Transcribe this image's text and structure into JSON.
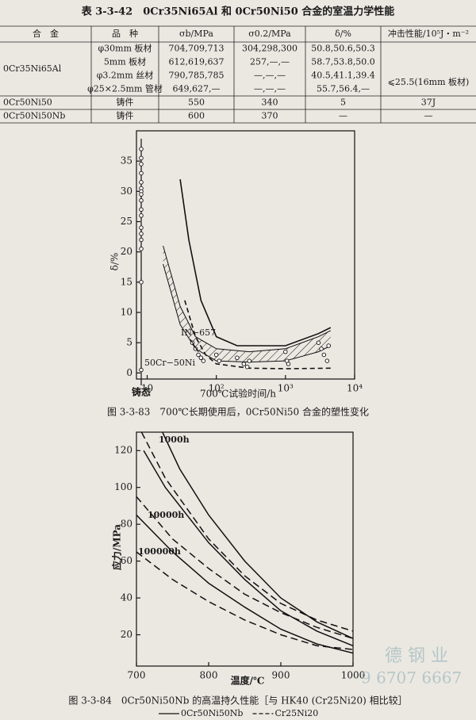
{
  "table": {
    "title": "表 3-3-42　0Cr35Ni65Al 和 0Cr50Ni50 合金的室温力学性能",
    "header": [
      "合　金",
      "品　种",
      "σb/MPa",
      "σ0.2/MPa",
      "δ/%",
      "冲击性能/10⁵J・m⁻²"
    ],
    "groups": [
      {
        "alloy": "0Cr35Ni65Al",
        "impact": "⩽25.5(16mm 板材)",
        "rows": [
          [
            "φ30mm 板材",
            "704,709,713",
            "304,298,300",
            "50.8,50.6,50.3"
          ],
          [
            "5mm 板材",
            "612,619,637",
            "257,—,—",
            "58.7,53.8,50.0"
          ],
          [
            "φ3.2mm 丝材",
            "790,785,785",
            "—,—,—",
            "40.5,41.1,39.4"
          ],
          [
            "φ25×2.5mm 管材",
            "649,627,—",
            "—,—,—",
            "55.7,56.4,—"
          ]
        ]
      },
      {
        "alloy": "0Cr50Ni50",
        "impact": "37J",
        "rows": [
          [
            "铸件",
            "550",
            "340",
            "5"
          ]
        ]
      },
      {
        "alloy": "0Cr50Ni50Nb",
        "impact": "—",
        "rows": [
          [
            "铸件",
            "600",
            "370",
            "—"
          ]
        ]
      }
    ]
  },
  "chart_data": [
    {
      "type": "scatter",
      "caption": "图 3-3-83　700℃长期使用后，0Cr50Ni50 合金的塑性变化",
      "xlabel": "700℃试验时间/h",
      "ylabel": "δ/%",
      "log_x": true,
      "xlim": [
        7,
        10000
      ],
      "ylim": [
        -1,
        40
      ],
      "xticks": [
        10,
        {
          "value": 100,
          "label": "10²"
        },
        {
          "value": 1000,
          "label": "10³"
        },
        {
          "value": 10000,
          "label": "10⁴"
        }
      ],
      "yticks": [
        0,
        5,
        10,
        15,
        20,
        25,
        30,
        35
      ],
      "cast": {
        "label": "铸态",
        "values": [
          37,
          35.5,
          34.5,
          33,
          31.5,
          30.5,
          30,
          29.5,
          28.5,
          27,
          26,
          24,
          23,
          22,
          20.5,
          15,
          0.5
        ]
      },
      "series": [
        {
          "x": [
            45,
            50,
            55,
            60,
            65,
            100,
            110,
            200,
            250,
            280,
            300,
            1000,
            1050,
            1100,
            3000,
            3300,
            3600,
            4000,
            4200
          ],
          "values": [
            5,
            4,
            3,
            2.5,
            2,
            3,
            2,
            2.5,
            1.5,
            1,
            2,
            3.5,
            2,
            1.5,
            5,
            4,
            3,
            2,
            4.5
          ]
        }
      ],
      "band": {
        "label": "IN−657",
        "x": [
          17,
          30,
          50,
          100,
          300,
          1000,
          3000,
          4500
        ],
        "upper": [
          21,
          11,
          6,
          4,
          3.5,
          4,
          6,
          7
        ],
        "lower": [
          18,
          8,
          4,
          2,
          1.8,
          2,
          3.5,
          4.5
        ]
      },
      "curves": [
        {
          "dash": false,
          "x": [
            30,
            40,
            60,
            100,
            200,
            1000,
            3000,
            4500
          ],
          "values": [
            32,
            22,
            12,
            6,
            4.5,
            4.5,
            6.5,
            7.5
          ]
        },
        {
          "dash": true,
          "label": "50Cr−50Ni",
          "x": [
            35,
            50,
            70,
            100,
            300,
            1000,
            4500
          ],
          "values": [
            12,
            6,
            3,
            1.5,
            0.8,
            0.7,
            0.8
          ]
        }
      ]
    },
    {
      "type": "line",
      "caption": "图 3-3-84　0Cr50Ni50Nb 的高温持久性能［与 HK40 (Cr25Ni20) 相比较］",
      "xlabel": "温度/℃",
      "ylabel": "应力/MPa",
      "xlim": [
        700,
        1000
      ],
      "ylim": [
        3,
        130
      ],
      "xticks": [
        700,
        800,
        900,
        1000
      ],
      "yticks": [
        20,
        40,
        60,
        80,
        100,
        120
      ],
      "legend": [
        {
          "label": "0Cr50Ni50Nb",
          "dash": false
        },
        {
          "label": "Cr25Ni20",
          "dash": true
        }
      ],
      "series": [
        {
          "label": "1000h",
          "dash": false,
          "x": [
            736,
            760,
            800,
            850,
            900,
            950,
            1000
          ],
          "values": [
            130,
            110,
            85,
            60,
            40,
            27,
            18
          ]
        },
        {
          "dash": true,
          "x": [
            707,
            740,
            800,
            850,
            900,
            950,
            1000
          ],
          "values": [
            130,
            105,
            72,
            52,
            37,
            28,
            22
          ]
        },
        {
          "label": "10000h",
          "dash": false,
          "x": [
            710,
            740,
            800,
            850,
            900,
            950,
            1000
          ],
          "values": [
            120,
            100,
            70,
            50,
            33,
            22,
            14
          ]
        },
        {
          "dash": true,
          "x": [
            700,
            750,
            800,
            850,
            900,
            950,
            1000
          ],
          "values": [
            95,
            72,
            56,
            42,
            32,
            24,
            18
          ]
        },
        {
          "label": "100000h",
          "dash": false,
          "x": [
            700,
            750,
            800,
            850,
            900,
            950,
            1000
          ],
          "values": [
            85,
            65,
            48,
            35,
            23,
            15,
            10
          ]
        },
        {
          "dash": true,
          "x": [
            700,
            750,
            800,
            850,
            900,
            950,
            1000
          ],
          "values": [
            65,
            50,
            38,
            28,
            20,
            14,
            12
          ]
        }
      ]
    }
  ],
  "watermark": [
    "德 钢 业",
    "9 6707 6667"
  ]
}
